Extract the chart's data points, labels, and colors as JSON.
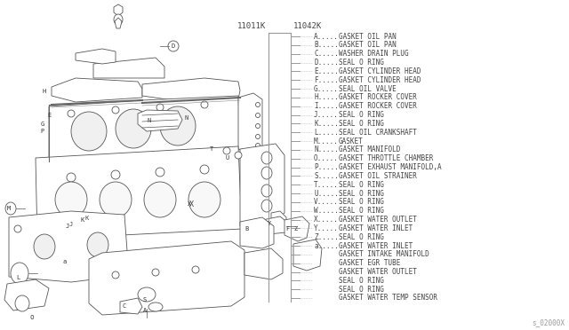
{
  "bg_color": "#ffffff",
  "part_numbers": [
    "11011K",
    "11042K"
  ],
  "legend_entries": [
    [
      "A",
      "GASKET OIL PAN"
    ],
    [
      "B",
      "GASKET OIL PAN"
    ],
    [
      "C",
      "WASHER DRAIN PLUG"
    ],
    [
      "D",
      "SEAL O RING"
    ],
    [
      "E",
      "GASKET CYLINDER HEAD"
    ],
    [
      "F",
      "GASKET CYLINDER HEAD"
    ],
    [
      "G",
      "SEAL OIL VALVE"
    ],
    [
      "H",
      "GASKET ROCKER COVER"
    ],
    [
      "I",
      "GASKET ROCKER COVER"
    ],
    [
      "J",
      "SEAL O RING"
    ],
    [
      "K",
      "SEAL O RING"
    ],
    [
      "L",
      "SEAL OIL CRANKSHAFT"
    ],
    [
      "M",
      "GASKET"
    ],
    [
      "N",
      "GASKET MANIFOLD"
    ],
    [
      "O",
      "GASKET THROTTLE CHAMBER"
    ],
    [
      "P",
      "GASKET EXHAUST MANIFOLD,A"
    ],
    [
      "S",
      "GASKET OIL STRAINER"
    ],
    [
      "T",
      "SEAL O RING"
    ],
    [
      "U",
      "SEAL O RING"
    ],
    [
      "V",
      "SEAL O RING"
    ],
    [
      "W",
      "SEAL O RING"
    ],
    [
      "X",
      "GASKET WATER OUTLET"
    ],
    [
      "Y",
      "GASKET WATER INLET"
    ],
    [
      "Z",
      "SEAL O RING"
    ],
    [
      "a",
      "GASKET WATER INLET"
    ],
    [
      "",
      "GASKET INTAKE MANIFOLD"
    ],
    [
      "",
      "GASKET EGR TUBE"
    ],
    [
      "",
      "GASKET WATER OUTLET"
    ],
    [
      "",
      "SEAL O RING"
    ],
    [
      "",
      "SEAL O RING"
    ],
    [
      "",
      "GASKET WATER TEMP SENSOR"
    ]
  ],
  "watermark": "s_02000X",
  "line_color": "#999999",
  "text_color": "#444444",
  "font_size": 5.5,
  "part_num_font_size": 6.5
}
